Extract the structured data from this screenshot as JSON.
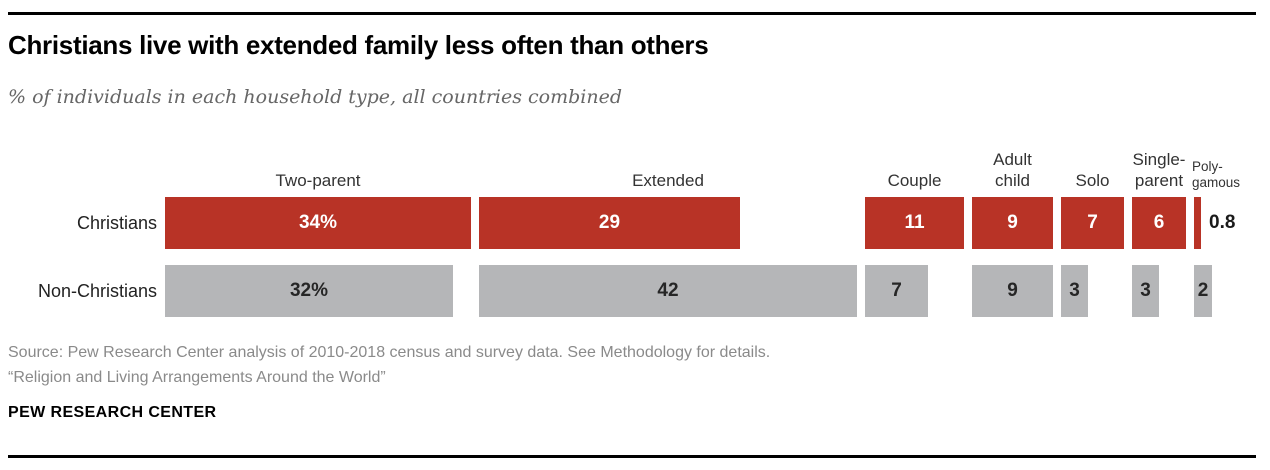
{
  "chart_data": {
    "type": "bar",
    "orientation": "horizontal-grouped",
    "title": "Christians live with extended family less often than others",
    "subtitle": "% of individuals in each household type, all countries combined",
    "categories": [
      "Two-parent",
      "Extended",
      "Couple",
      "Adult child",
      "Solo",
      "Single-parent",
      "Polygamous"
    ],
    "category_labels": [
      {
        "lines": [
          "Two-parent"
        ],
        "small": false
      },
      {
        "lines": [
          "Extended"
        ],
        "small": false
      },
      {
        "lines": [
          "Couple"
        ],
        "small": false
      },
      {
        "lines": [
          "Adult",
          "child"
        ],
        "small": false
      },
      {
        "lines": [
          "Solo"
        ],
        "small": false
      },
      {
        "lines": [
          "Single-",
          "parent"
        ],
        "small": false
      },
      {
        "lines": [
          "Poly-",
          "gamous"
        ],
        "small": true
      }
    ],
    "series": [
      {
        "name": "Christians",
        "values": [
          34,
          29,
          11,
          9,
          7,
          6,
          0.8
        ],
        "labels": [
          "34%",
          "29",
          "11",
          "9",
          "7",
          "6",
          "0.8"
        ],
        "color": "#b83326",
        "label_color": "#ffffff"
      },
      {
        "name": "Non-Christians",
        "values": [
          32,
          42,
          7,
          9,
          3,
          3,
          2
        ],
        "labels": [
          "32%",
          "42",
          "7",
          "9",
          "3",
          "3",
          "2"
        ],
        "color": "#b5b6b8",
        "label_color": "#262626"
      }
    ],
    "xlim": [
      0,
      42
    ],
    "grid": false,
    "legend_position": "row-labels-left"
  },
  "footer": {
    "source_line1": "Source: Pew Research Center analysis of 2010-2018 census and survey data. See Methodology for details.",
    "source_line2": "“Religion and Living Arrangements Around the World”",
    "brand": "PEW RESEARCH CENTER"
  }
}
